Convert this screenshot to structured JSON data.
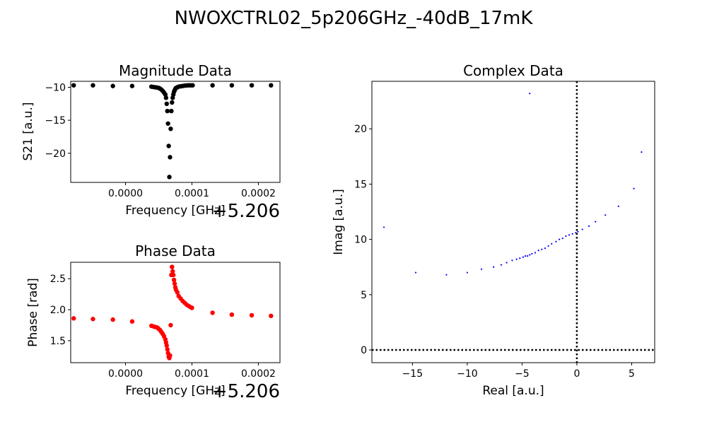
{
  "figure": {
    "title": "NWOXCTRL02_5p206GHz_-40dB_17mK"
  },
  "chart_data": [
    {
      "id": "magnitude",
      "type": "scatter",
      "title": "Magnitude Data",
      "xlabel": "Frequency [GHz]",
      "ylabel": "S21 [a.u.]",
      "x_offset_label": "+5.206",
      "xlim": [
        -8.25e-05,
        0.0002325
      ],
      "ylim": [
        -24.42,
        -9.09
      ],
      "xticks": [
        0.0,
        0.0001,
        0.0002
      ],
      "xtick_labels": [
        "0.0000",
        "0.0001",
        "0.0002"
      ],
      "yticks": [
        -10,
        -15,
        -20
      ],
      "ytick_labels": [
        "−10",
        "−15",
        "−20"
      ],
      "color": "#000000",
      "x": [
        -7.8e-05,
        -4.9e-05,
        -1.9e-05,
        1e-05,
        3.9e-05,
        4.2e-05,
        4.5e-05,
        4.8e-05,
        5e-05,
        5.2e-05,
        5.4e-05,
        5.6e-05,
        5.8e-05,
        6e-05,
        6.1e-05,
        6.2e-05,
        6.3e-05,
        6.4e-05,
        6.5e-05,
        6.6e-05,
        6.7e-05,
        6.8e-05,
        6.9e-05,
        7e-05,
        7.1e-05,
        7.2e-05,
        7.3e-05,
        7.4e-05,
        7.5e-05,
        7.6e-05,
        7.8e-05,
        8e-05,
        8.3e-05,
        8.6e-05,
        8.9e-05,
        9.2e-05,
        9.5e-05,
        9.8e-05,
        0.000101,
        0.000131,
        0.00016,
        0.00019,
        0.000219
      ],
      "y": [
        -9.7,
        -9.7,
        -9.8,
        -9.8,
        -9.9,
        -9.95,
        -10.0,
        -10.05,
        -10.1,
        -10.2,
        -10.35,
        -10.55,
        -10.8,
        -11.1,
        -11.6,
        -12.5,
        -13.6,
        -15.5,
        -18.9,
        -23.6,
        -20.6,
        -16.3,
        -13.6,
        -12.3,
        -11.6,
        -11.1,
        -10.7,
        -10.45,
        -10.25,
        -10.1,
        -10.0,
        -9.9,
        -9.85,
        -9.8,
        -9.75,
        -9.72,
        -9.7,
        -9.7,
        -9.7,
        -9.7,
        -9.7,
        -9.7,
        -9.7
      ]
    },
    {
      "id": "phase",
      "type": "scatter",
      "title": "Phase Data",
      "xlabel": "Frequency [GHz]",
      "ylabel": "Phase [rad]",
      "x_offset_label": "+5.206",
      "xlim": [
        -8.25e-05,
        0.0002325
      ],
      "ylim": [
        1.145,
        2.765
      ],
      "xticks": [
        0.0,
        0.0001,
        0.0002
      ],
      "xtick_labels": [
        "0.0000",
        "0.0001",
        "0.0002"
      ],
      "yticks": [
        1.5,
        2.0,
        2.5
      ],
      "ytick_labels": [
        "1.5",
        "2.0",
        "2.5"
      ],
      "color": "#ff0000",
      "x": [
        -7.8e-05,
        -4.9e-05,
        -1.9e-05,
        1e-05,
        3.9e-05,
        4.2e-05,
        4.5e-05,
        4.8e-05,
        5e-05,
        5.2e-05,
        5.4e-05,
        5.6e-05,
        5.8e-05,
        6e-05,
        6.1e-05,
        6.2e-05,
        6.3e-05,
        6.4e-05,
        6.5e-05,
        6.6e-05,
        6.7e-05,
        6.8e-05,
        6.9e-05,
        7e-05,
        7.1e-05,
        7.2e-05,
        7.3e-05,
        7.4e-05,
        7.5e-05,
        7.6e-05,
        7.8e-05,
        8e-05,
        8.3e-05,
        8.6e-05,
        8.9e-05,
        9.2e-05,
        9.5e-05,
        9.8e-05,
        0.0001,
        0.000131,
        0.00016,
        0.00019,
        0.000219
      ],
      "y": [
        1.86,
        1.85,
        1.84,
        1.81,
        1.74,
        1.73,
        1.72,
        1.71,
        1.69,
        1.67,
        1.64,
        1.61,
        1.57,
        1.52,
        1.47,
        1.42,
        1.36,
        1.3,
        1.24,
        1.22,
        1.26,
        1.75,
        2.56,
        2.69,
        2.62,
        2.56,
        2.48,
        2.42,
        2.36,
        2.32,
        2.28,
        2.22,
        2.18,
        2.14,
        2.11,
        2.08,
        2.06,
        2.04,
        2.03,
        1.95,
        1.92,
        1.91,
        1.9
      ]
    },
    {
      "id": "complex",
      "type": "scatter",
      "title": "Complex Data",
      "xlabel": "Real [a.u.]",
      "ylabel": "Imag [a.u.]",
      "xlim": [
        -18.7,
        7.1
      ],
      "ylim": [
        -1.15,
        24.3
      ],
      "xticks": [
        -15,
        -10,
        -5,
        0,
        5
      ],
      "xtick_labels": [
        "−15",
        "−10",
        "−5",
        "0",
        "5"
      ],
      "yticks": [
        0,
        5,
        10,
        15,
        20
      ],
      "ytick_labels": [
        "0",
        "5",
        "10",
        "15",
        "20"
      ],
      "reference_lines": {
        "x": 0,
        "y": 0,
        "style": "dotted"
      },
      "color": "#0000ff",
      "x": [
        -17.6,
        -14.7,
        -11.9,
        -10.0,
        -8.7,
        -7.6,
        -6.9,
        -6.4,
        -5.9,
        -5.5,
        -5.2,
        -4.9,
        -4.7,
        -4.5,
        -4.3,
        -4.1,
        -3.8,
        -3.5,
        -3.2,
        -2.9,
        -2.6,
        -2.3,
        -1.9,
        -1.6,
        -1.3,
        -1.0,
        -0.7,
        -0.4,
        -0.1,
        0.1,
        0.5,
        1.1,
        1.7,
        2.6,
        3.8,
        5.2,
        5.9,
        -4.3
      ],
      "y": [
        11.1,
        7.0,
        6.8,
        7.0,
        7.3,
        7.5,
        7.7,
        7.9,
        8.1,
        8.2,
        8.3,
        8.4,
        8.5,
        8.5,
        8.6,
        8.7,
        8.8,
        9.0,
        9.1,
        9.2,
        9.4,
        9.6,
        9.8,
        10.0,
        10.1,
        10.3,
        10.4,
        10.5,
        10.6,
        10.7,
        10.9,
        11.2,
        11.6,
        12.2,
        13.0,
        14.6,
        17.9,
        23.2
      ]
    }
  ]
}
